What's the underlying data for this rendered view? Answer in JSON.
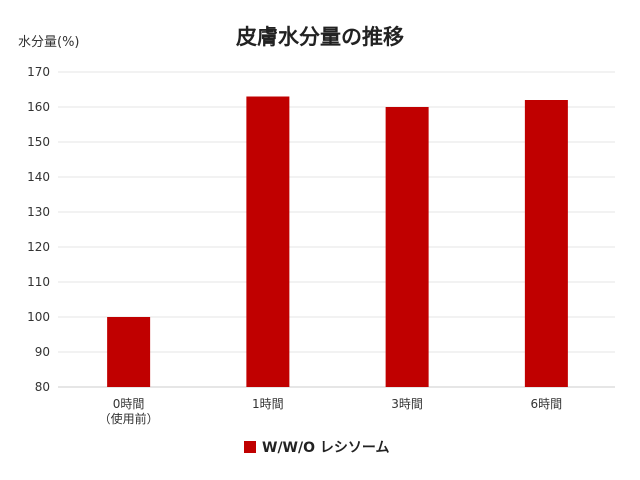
{
  "chart_data": {
    "type": "bar",
    "title": "皮膚水分量の推移",
    "ylabel": "水分量(%)",
    "xlabel": "",
    "ylim": [
      80,
      170
    ],
    "yticks": [
      80,
      90,
      100,
      110,
      120,
      130,
      140,
      150,
      160,
      170
    ],
    "categories": [
      "0時間\n（使用前）",
      "1時間",
      "3時間",
      "6時間"
    ],
    "series": [
      {
        "name": "W/W/O レシソーム",
        "values": [
          100,
          163,
          160,
          162
        ],
        "color": "#c00000"
      }
    ],
    "grid": true,
    "legend_position": "bottom"
  }
}
